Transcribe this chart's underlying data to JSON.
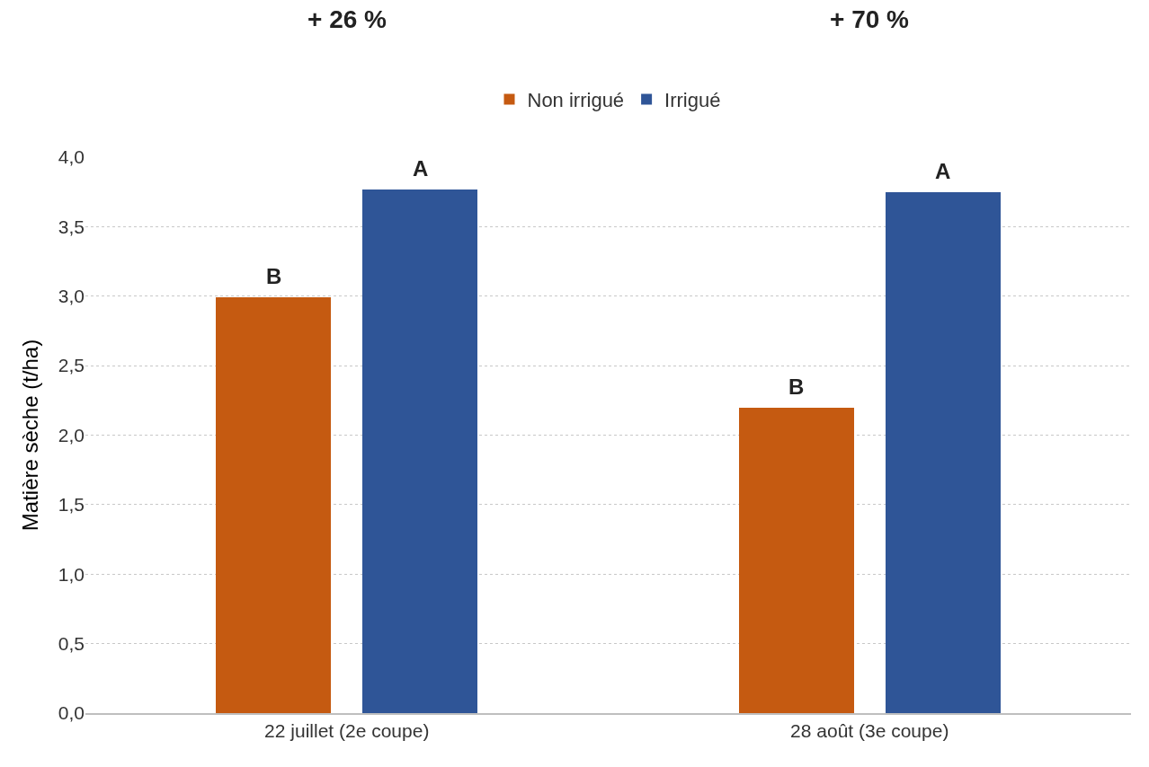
{
  "chart_data": {
    "type": "bar",
    "ylabel": "Matière sèche (t/ha)",
    "categories": [
      "22 juillet (2e coupe)",
      "28 août (3e coupe)"
    ],
    "series": [
      {
        "name": "Non irrigué",
        "color": "#c55a11",
        "values": [
          2.99,
          2.2
        ]
      },
      {
        "name": "Irrigué",
        "color": "#2f5597",
        "values": [
          3.77,
          3.75
        ]
      }
    ],
    "ylim": [
      0,
      4
    ],
    "yticks": [
      {
        "value": 0,
        "label": "0,0"
      },
      {
        "value": 0.5,
        "label": "0,5"
      },
      {
        "value": 1,
        "label": "1,0"
      },
      {
        "value": 1.5,
        "label": "1,5"
      },
      {
        "value": 2,
        "label": "2,0"
      },
      {
        "value": 2.5,
        "label": "2,5"
      },
      {
        "value": 3,
        "label": "3,0"
      },
      {
        "value": 3.5,
        "label": "3,5"
      },
      {
        "value": 4,
        "label": "4,0"
      }
    ],
    "grid": "y",
    "legend": "top",
    "annotations": [
      "+ 26 %",
      "+ 70 %",
      "B",
      "A",
      "B",
      "A"
    ]
  }
}
